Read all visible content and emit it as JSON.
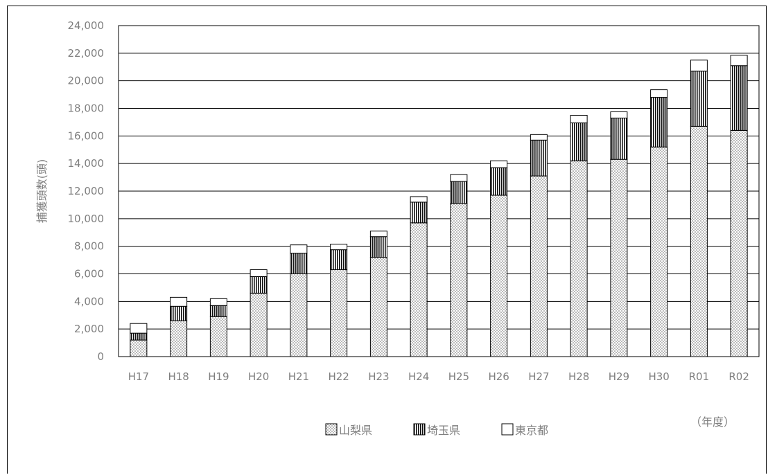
{
  "chart_data": {
    "type": "bar",
    "stacked": true,
    "categories": [
      "H17",
      "H18",
      "H19",
      "H20",
      "H21",
      "H22",
      "H23",
      "H24",
      "H25",
      "H26",
      "H27",
      "H28",
      "H29",
      "H30",
      "R01",
      "R02"
    ],
    "series": [
      {
        "name": "山梨県",
        "pattern": "dots",
        "values": [
          1200,
          2600,
          2900,
          4600,
          6000,
          6300,
          7200,
          9700,
          11100,
          11700,
          13100,
          14200,
          14300,
          15200,
          16700,
          16400
        ]
      },
      {
        "name": "埼玉県",
        "pattern": "vertical-stripes",
        "values": [
          500,
          1050,
          800,
          1200,
          1500,
          1450,
          1500,
          1500,
          1600,
          2000,
          2600,
          2750,
          3000,
          3600,
          4000,
          4700
        ]
      },
      {
        "name": "東京都",
        "pattern": "white",
        "values": [
          700,
          650,
          500,
          500,
          600,
          400,
          400,
          400,
          500,
          500,
          400,
          550,
          450,
          550,
          800,
          750
        ]
      }
    ],
    "ylim": [
      0,
      24000
    ],
    "yticks": [
      "0",
      "2,000",
      "4,000",
      "6,000",
      "8,000",
      "10,000",
      "12,000",
      "14,000",
      "16,000",
      "18,000",
      "20,000",
      "22,000",
      "24,000"
    ],
    "ylabel": "捕獲頭数(頭)",
    "xlabel": "（年度）",
    "grid": true,
    "legend_position": "bottom"
  }
}
